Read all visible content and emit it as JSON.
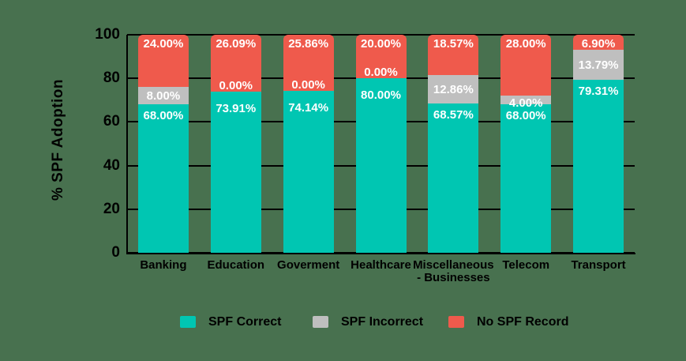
{
  "colors": {
    "background": "#48714F",
    "axis": "#000000",
    "tick_text": "#000000",
    "bar_label_text": "#FFFFFF",
    "spf_correct": "#00C6B2",
    "spf_incorrect": "#BFBFBF",
    "no_spf_record": "#EF5A4C"
  },
  "chart_data": {
    "type": "bar",
    "stacked": true,
    "title": "",
    "xlabel": "",
    "ylabel": "% SPF Adoption",
    "ylim": [
      0,
      100
    ],
    "yticks": [
      "0",
      "20",
      "40",
      "60",
      "80",
      "100"
    ],
    "grid": true,
    "legend_position": "bottom",
    "categories": [
      "Banking",
      "Education",
      "Goverment",
      "Healthcare",
      "Miscellaneous - Businesses",
      "Telecom",
      "Transport"
    ],
    "category_display_lines": [
      [
        "Banking"
      ],
      [
        "Education"
      ],
      [
        "Goverment"
      ],
      [
        "Healthcare"
      ],
      [
        "Miscellaneous",
        "- Businesses"
      ],
      [
        "Telecom"
      ],
      [
        "Transport"
      ]
    ],
    "series": [
      {
        "name": "SPF Correct",
        "color": "#00C6B2",
        "values": [
          68.0,
          73.91,
          74.14,
          80.0,
          68.57,
          68.0,
          79.31
        ],
        "labels": [
          "68.00%",
          "73.91%",
          "74.14%",
          "80.00%",
          "68.57%",
          "68.00%",
          "79.31%"
        ]
      },
      {
        "name": "SPF Incorrect",
        "color": "#BFBFBF",
        "values": [
          8.0,
          0.0,
          0.0,
          0.0,
          12.86,
          4.0,
          13.79
        ],
        "labels": [
          "8.00%",
          "0.00%",
          "0.00%",
          "0.00%",
          "12.86%",
          "4.00%",
          "13.79%"
        ]
      },
      {
        "name": "No SPF Record",
        "color": "#EF5A4C",
        "values": [
          24.0,
          26.09,
          25.86,
          20.0,
          18.57,
          28.0,
          6.9
        ],
        "labels": [
          "24.00%",
          "26.09%",
          "25.86%",
          "20.00%",
          "18.57%",
          "28.00%",
          "6.90%"
        ]
      }
    ]
  }
}
